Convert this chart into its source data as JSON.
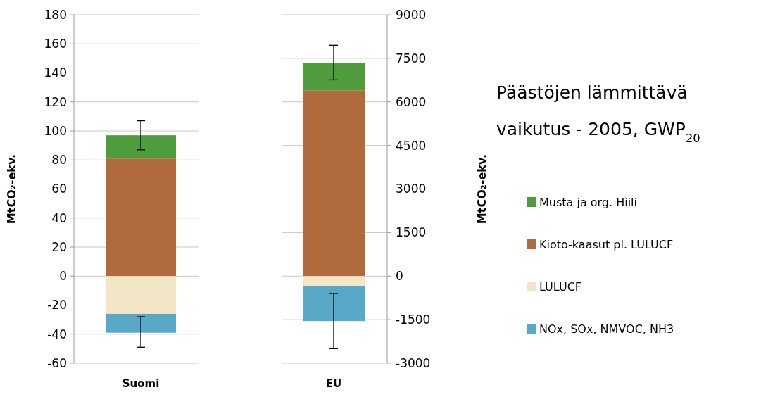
{
  "chart_data": [
    {
      "type": "bar",
      "categories": [
        "Suomi"
      ],
      "stacked": true,
      "ylabel": "MtCO₂-ekv.",
      "ylim": [
        -60,
        180
      ],
      "yticks": [
        -60,
        -40,
        -20,
        0,
        20,
        40,
        60,
        80,
        100,
        120,
        140,
        160,
        180
      ],
      "grid": "y",
      "legend": false,
      "series": [
        {
          "color": "#b06a3c",
          "values": [
            81
          ]
        },
        {
          "color": "#4f9c3c",
          "values": [
            16
          ],
          "errors": [
            [
              87,
              107
            ]
          ]
        },
        {
          "color": "#f3e6c6",
          "values": [
            -26
          ]
        },
        {
          "color": "#5aa8c8",
          "values": [
            -13
          ],
          "errors": [
            [
              -49,
              -28
            ]
          ]
        }
      ]
    },
    {
      "type": "bar",
      "categories": [
        "EU"
      ],
      "stacked": true,
      "ylabel": "MtCO₂-ekv.",
      "ylim": [
        -3000,
        9000
      ],
      "yticks": [
        -3000,
        -1500,
        0,
        1500,
        3000,
        4500,
        6000,
        7500,
        9000
      ],
      "grid": "y",
      "legend": "right",
      "series": [
        {
          "name": "Kioto-kaasut pl. LULUCF",
          "color": "#b06a3c",
          "values": [
            6400
          ]
        },
        {
          "name": "Musta ja org. Hiili",
          "color": "#4f9c3c",
          "values": [
            950
          ],
          "errors": [
            [
              6760,
              7950
            ]
          ]
        },
        {
          "name": "LULUCF",
          "color": "#f3e6c6",
          "values": [
            -340
          ]
        },
        {
          "name": "NOx, SOx, NMVOC, NH3",
          "color": "#5aa8c8",
          "values": [
            -1210
          ],
          "errors": [
            [
              -2500,
              -600
            ]
          ]
        }
      ]
    },
    {
      "type": "other",
      "title": "Päästöjen lämmittävä vaikutus - 2005, GWP$_{20}$"
    }
  ]
}
